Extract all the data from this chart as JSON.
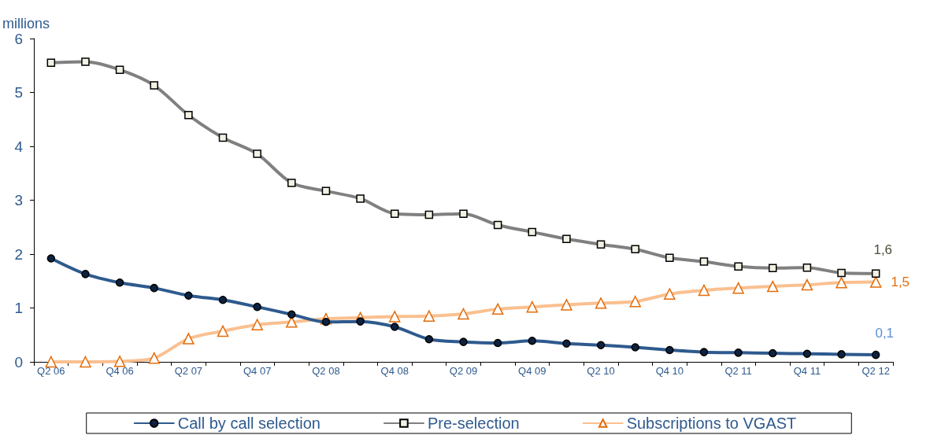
{
  "chart_data": {
    "type": "line",
    "ylabel": "millions",
    "categories": [
      "Q2 06",
      null,
      "Q4 06",
      null,
      "Q2 07",
      null,
      "Q4 07",
      null,
      "Q2 08",
      null,
      "Q4 08",
      null,
      "Q2 09",
      null,
      "Q4 09",
      null,
      "Q2 10",
      null,
      "Q4 10",
      null,
      "Q2 11",
      null,
      "Q4 11",
      null,
      "Q2 12"
    ],
    "series": [
      {
        "name": "Call by call selection",
        "color": "#2e5a8e",
        "marker": "circle",
        "values": [
          1.92,
          1.63,
          1.47,
          1.37,
          1.23,
          1.15,
          1.02,
          0.88,
          0.74,
          0.75,
          0.65,
          0.42,
          0.37,
          0.35,
          0.39,
          0.34,
          0.31,
          0.27,
          0.22,
          0.18,
          0.17,
          0.16,
          0.15,
          0.14,
          0.13
        ],
        "value_labels": [
          null,
          null,
          null,
          null,
          null,
          null,
          null,
          null,
          null,
          null,
          null,
          null,
          null,
          null,
          null,
          null,
          null,
          null,
          null,
          null,
          null,
          null,
          null,
          null,
          "0,1"
        ]
      },
      {
        "name": "Pre-selection",
        "color": "#808080",
        "marker": "square",
        "values": [
          5.55,
          5.57,
          5.42,
          5.13,
          4.58,
          4.16,
          3.86,
          3.32,
          3.17,
          3.03,
          2.75,
          2.73,
          2.75,
          2.54,
          2.41,
          2.28,
          2.18,
          2.09,
          1.93,
          1.86,
          1.77,
          1.74,
          1.75,
          1.65,
          1.64
        ],
        "value_labels": [
          null,
          null,
          null,
          null,
          null,
          null,
          null,
          null,
          null,
          null,
          null,
          null,
          null,
          null,
          null,
          null,
          null,
          null,
          null,
          null,
          null,
          null,
          null,
          null,
          "1,6"
        ]
      },
      {
        "name": "Subscriptions to VGAST",
        "color": "#fac090",
        "marker": "triangle",
        "values": [
          0,
          0,
          0.01,
          0.07,
          0.43,
          0.57,
          0.69,
          0.74,
          0.8,
          0.82,
          0.84,
          0.85,
          0.89,
          0.98,
          1.02,
          1.06,
          1.09,
          1.12,
          1.26,
          1.33,
          1.37,
          1.4,
          1.43,
          1.47,
          1.48
        ],
        "value_labels": [
          null,
          null,
          null,
          null,
          null,
          null,
          null,
          null,
          null,
          null,
          null,
          null,
          null,
          null,
          null,
          null,
          null,
          null,
          null,
          null,
          null,
          null,
          null,
          null,
          "1,5"
        ]
      }
    ],
    "ylim": [
      0,
      6
    ],
    "yticks": [
      0,
      1,
      2,
      3,
      4,
      5,
      6
    ],
    "grid": false,
    "legend": "bottom"
  }
}
